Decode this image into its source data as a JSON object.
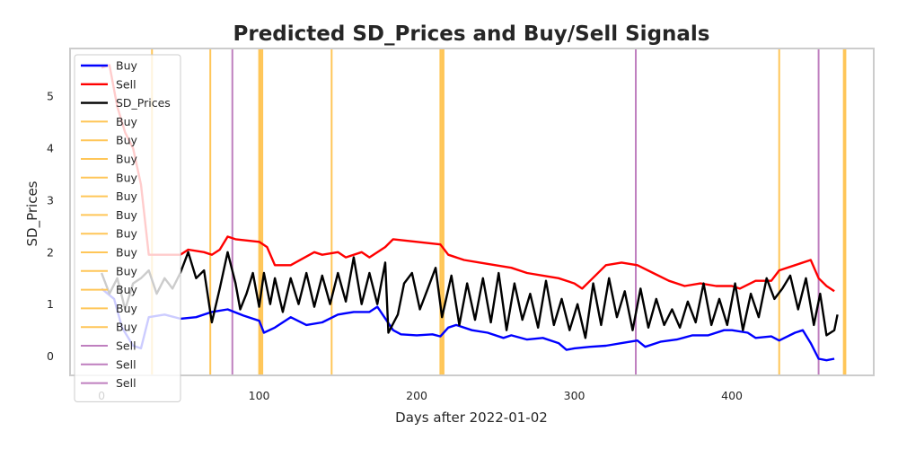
{
  "chart_data": {
    "type": "line",
    "title": "Predicted SD_Prices and Buy/Sell Signals",
    "xlabel": "Days after 2022-01-02",
    "ylabel": "SD_Prices",
    "xlim": [
      -20,
      490
    ],
    "ylim": [
      -0.37,
      5.92
    ],
    "xticks": [
      0,
      100,
      200,
      300,
      400
    ],
    "yticks": [
      0,
      1,
      2,
      3,
      4,
      5
    ],
    "grid": false,
    "legend_position": "upper-left",
    "series": [
      {
        "name": "Buy",
        "color": "#0000ff",
        "points": [
          [
            0,
            1.3
          ],
          [
            8,
            1.1
          ],
          [
            13,
            0.55
          ],
          [
            20,
            0.2
          ],
          [
            25,
            0.15
          ],
          [
            30,
            0.75
          ],
          [
            40,
            0.8
          ],
          [
            50,
            0.72
          ],
          [
            60,
            0.75
          ],
          [
            70,
            0.85
          ],
          [
            80,
            0.9
          ],
          [
            90,
            0.78
          ],
          [
            100,
            0.68
          ],
          [
            103,
            0.45
          ],
          [
            110,
            0.55
          ],
          [
            120,
            0.75
          ],
          [
            130,
            0.6
          ],
          [
            140,
            0.65
          ],
          [
            150,
            0.8
          ],
          [
            160,
            0.85
          ],
          [
            170,
            0.85
          ],
          [
            175,
            0.95
          ],
          [
            185,
            0.5
          ],
          [
            190,
            0.42
          ],
          [
            200,
            0.4
          ],
          [
            210,
            0.42
          ],
          [
            215,
            0.38
          ],
          [
            220,
            0.55
          ],
          [
            225,
            0.6
          ],
          [
            235,
            0.5
          ],
          [
            245,
            0.45
          ],
          [
            255,
            0.35
          ],
          [
            260,
            0.4
          ],
          [
            270,
            0.32
          ],
          [
            280,
            0.35
          ],
          [
            290,
            0.25
          ],
          [
            295,
            0.12
          ],
          [
            300,
            0.15
          ],
          [
            310,
            0.18
          ],
          [
            320,
            0.2
          ],
          [
            330,
            0.25
          ],
          [
            340,
            0.3
          ],
          [
            345,
            0.18
          ],
          [
            355,
            0.28
          ],
          [
            365,
            0.32
          ],
          [
            375,
            0.4
          ],
          [
            385,
            0.4
          ],
          [
            395,
            0.5
          ],
          [
            400,
            0.5
          ],
          [
            410,
            0.45
          ],
          [
            415,
            0.35
          ],
          [
            425,
            0.38
          ],
          [
            430,
            0.3
          ],
          [
            440,
            0.45
          ],
          [
            445,
            0.5
          ],
          [
            450,
            0.25
          ],
          [
            455,
            -0.05
          ],
          [
            460,
            -0.08
          ],
          [
            465,
            -0.05
          ]
        ]
      },
      {
        "name": "Sell",
        "color": "#ff0000",
        "points": [
          [
            0,
            5.55
          ],
          [
            5,
            5.6
          ],
          [
            10,
            4.8
          ],
          [
            15,
            4.3
          ],
          [
            20,
            4.0
          ],
          [
            25,
            3.3
          ],
          [
            30,
            1.95
          ],
          [
            40,
            1.95
          ],
          [
            50,
            1.95
          ],
          [
            55,
            2.05
          ],
          [
            65,
            2.0
          ],
          [
            70,
            1.95
          ],
          [
            75,
            2.05
          ],
          [
            80,
            2.3
          ],
          [
            85,
            2.25
          ],
          [
            100,
            2.2
          ],
          [
            105,
            2.1
          ],
          [
            110,
            1.75
          ],
          [
            120,
            1.75
          ],
          [
            135,
            2.0
          ],
          [
            140,
            1.95
          ],
          [
            150,
            2.0
          ],
          [
            155,
            1.9
          ],
          [
            165,
            2.0
          ],
          [
            170,
            1.9
          ],
          [
            180,
            2.1
          ],
          [
            185,
            2.25
          ],
          [
            200,
            2.2
          ],
          [
            215,
            2.15
          ],
          [
            220,
            1.95
          ],
          [
            230,
            1.85
          ],
          [
            240,
            1.8
          ],
          [
            250,
            1.75
          ],
          [
            260,
            1.7
          ],
          [
            270,
            1.6
          ],
          [
            280,
            1.55
          ],
          [
            290,
            1.5
          ],
          [
            300,
            1.4
          ],
          [
            305,
            1.3
          ],
          [
            310,
            1.45
          ],
          [
            320,
            1.75
          ],
          [
            330,
            1.8
          ],
          [
            340,
            1.75
          ],
          [
            350,
            1.6
          ],
          [
            360,
            1.45
          ],
          [
            370,
            1.35
          ],
          [
            380,
            1.4
          ],
          [
            390,
            1.35
          ],
          [
            400,
            1.35
          ],
          [
            405,
            1.3
          ],
          [
            415,
            1.45
          ],
          [
            425,
            1.45
          ],
          [
            430,
            1.65
          ],
          [
            440,
            1.75
          ],
          [
            450,
            1.85
          ],
          [
            455,
            1.5
          ],
          [
            460,
            1.35
          ],
          [
            465,
            1.25
          ]
        ]
      },
      {
        "name": "SD_Prices",
        "color": "#000000",
        "points": [
          [
            0,
            1.6
          ],
          [
            5,
            1.2
          ],
          [
            10,
            1.5
          ],
          [
            15,
            0.9
          ],
          [
            20,
            1.4
          ],
          [
            25,
            1.5
          ],
          [
            30,
            1.65
          ],
          [
            35,
            1.2
          ],
          [
            40,
            1.5
          ],
          [
            45,
            1.3
          ],
          [
            50,
            1.6
          ],
          [
            55,
            2.0
          ],
          [
            60,
            1.5
          ],
          [
            65,
            1.65
          ],
          [
            70,
            0.65
          ],
          [
            75,
            1.3
          ],
          [
            80,
            2.0
          ],
          [
            85,
            1.4
          ],
          [
            88,
            0.9
          ],
          [
            92,
            1.2
          ],
          [
            96,
            1.6
          ],
          [
            100,
            0.95
          ],
          [
            103,
            1.6
          ],
          [
            107,
            1.0
          ],
          [
            110,
            1.5
          ],
          [
            115,
            0.85
          ],
          [
            120,
            1.5
          ],
          [
            125,
            1.0
          ],
          [
            130,
            1.6
          ],
          [
            135,
            0.95
          ],
          [
            140,
            1.55
          ],
          [
            145,
            1.0
          ],
          [
            150,
            1.6
          ],
          [
            155,
            1.05
          ],
          [
            160,
            1.9
          ],
          [
            165,
            1.0
          ],
          [
            170,
            1.6
          ],
          [
            175,
            1.0
          ],
          [
            180,
            1.8
          ],
          [
            182,
            0.45
          ],
          [
            188,
            0.8
          ],
          [
            192,
            1.4
          ],
          [
            197,
            1.6
          ],
          [
            202,
            0.9
          ],
          [
            207,
            1.3
          ],
          [
            212,
            1.7
          ],
          [
            216,
            0.75
          ],
          [
            222,
            1.55
          ],
          [
            227,
            0.6
          ],
          [
            232,
            1.4
          ],
          [
            237,
            0.7
          ],
          [
            242,
            1.5
          ],
          [
            247,
            0.65
          ],
          [
            252,
            1.6
          ],
          [
            257,
            0.5
          ],
          [
            262,
            1.4
          ],
          [
            267,
            0.7
          ],
          [
            272,
            1.2
          ],
          [
            277,
            0.55
          ],
          [
            282,
            1.45
          ],
          [
            287,
            0.6
          ],
          [
            292,
            1.1
          ],
          [
            297,
            0.5
          ],
          [
            302,
            1.0
          ],
          [
            307,
            0.35
          ],
          [
            312,
            1.4
          ],
          [
            317,
            0.6
          ],
          [
            322,
            1.5
          ],
          [
            327,
            0.75
          ],
          [
            332,
            1.25
          ],
          [
            337,
            0.5
          ],
          [
            342,
            1.3
          ],
          [
            347,
            0.55
          ],
          [
            352,
            1.1
          ],
          [
            357,
            0.6
          ],
          [
            362,
            0.9
          ],
          [
            367,
            0.55
          ],
          [
            372,
            1.05
          ],
          [
            377,
            0.65
          ],
          [
            382,
            1.4
          ],
          [
            387,
            0.6
          ],
          [
            392,
            1.1
          ],
          [
            397,
            0.6
          ],
          [
            402,
            1.4
          ],
          [
            407,
            0.5
          ],
          [
            412,
            1.2
          ],
          [
            417,
            0.75
          ],
          [
            422,
            1.5
          ],
          [
            427,
            1.1
          ],
          [
            432,
            1.3
          ],
          [
            437,
            1.55
          ],
          [
            442,
            0.9
          ],
          [
            447,
            1.5
          ],
          [
            452,
            0.6
          ],
          [
            456,
            1.2
          ],
          [
            460,
            0.4
          ],
          [
            465,
            0.5
          ],
          [
            467,
            0.8
          ]
        ]
      }
    ],
    "vlines": [
      {
        "name": "Buy",
        "color": "#ffc658",
        "x": 32
      },
      {
        "name": "Buy",
        "color": "#ffc658",
        "x": 69
      },
      {
        "name": "Buy",
        "color": "#ffc658",
        "x": 100
      },
      {
        "name": "Buy",
        "color": "#ffc658",
        "x": 101
      },
      {
        "name": "Buy",
        "color": "#ffc658",
        "x": 102
      },
      {
        "name": "Buy",
        "color": "#ffc658",
        "x": 146
      },
      {
        "name": "Buy",
        "color": "#ffc658",
        "x": 215
      },
      {
        "name": "Buy",
        "color": "#ffc658",
        "x": 216
      },
      {
        "name": "Buy",
        "color": "#ffc658",
        "x": 217
      },
      {
        "name": "Buy",
        "color": "#ffc658",
        "x": 430
      },
      {
        "name": "Buy",
        "color": "#ffc658",
        "x": 471
      },
      {
        "name": "Buy",
        "color": "#ffc658",
        "x": 472
      },
      {
        "name": "Sell",
        "color": "#bf7fbf",
        "x": 83
      },
      {
        "name": "Sell",
        "color": "#bf7fbf",
        "x": 339
      },
      {
        "name": "Sell",
        "color": "#bf7fbf",
        "x": 455
      }
    ]
  }
}
